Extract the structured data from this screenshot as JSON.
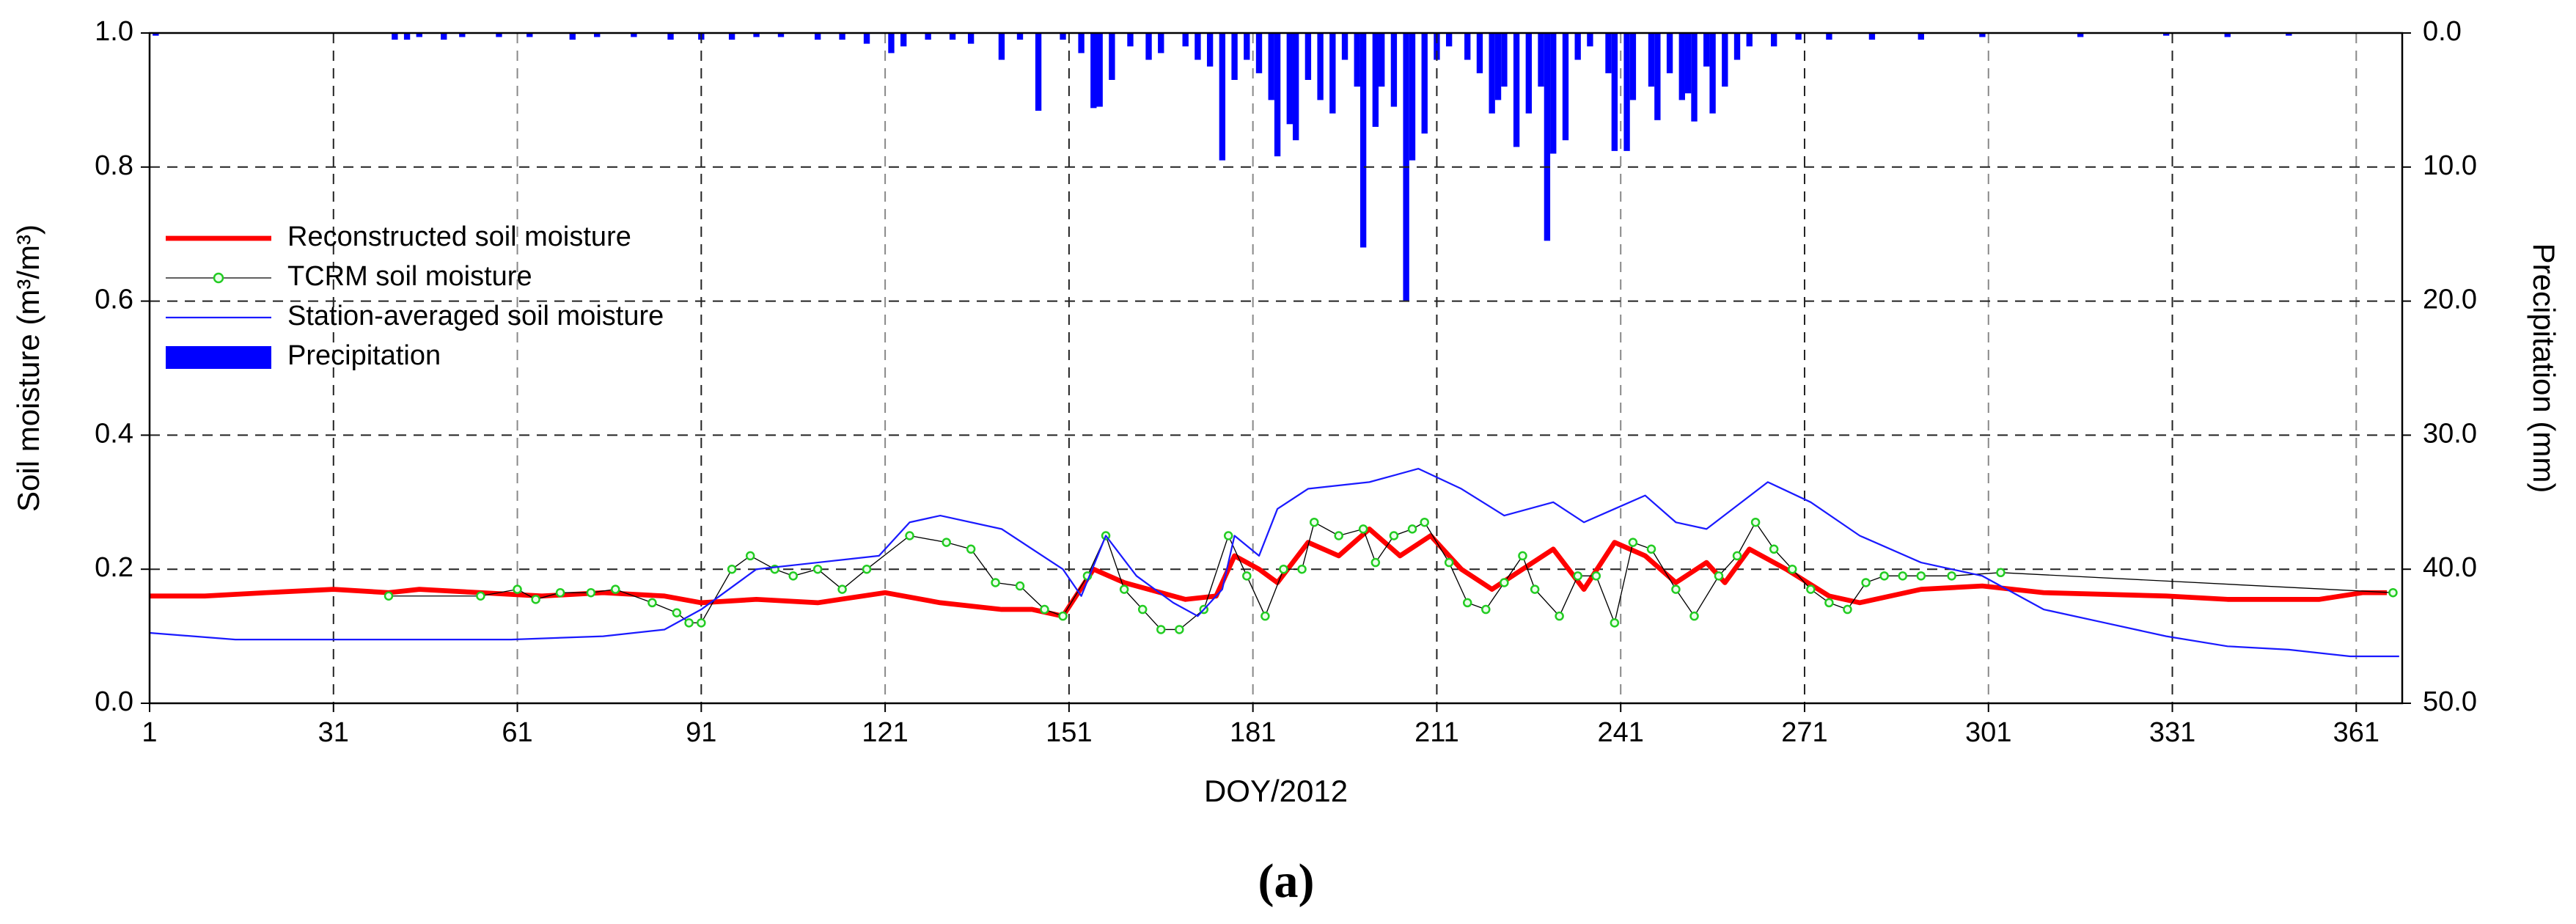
{
  "chart_data": {
    "type": "line",
    "x_label": "DOY/2012",
    "y_label": "Soil moisture (m³/m³)",
    "y2_label": "Precipitation (mm)",
    "caption": "(a)",
    "xlim": [
      1,
      368.5
    ],
    "xticks": [
      1,
      31,
      61,
      91,
      121,
      151,
      181,
      211,
      241,
      271,
      301,
      331,
      361
    ],
    "ylim": [
      0,
      1
    ],
    "yticks": [
      {
        "value": 0,
        "label": "0.0"
      },
      {
        "value": 0.2,
        "label": "0.2"
      },
      {
        "value": 0.4,
        "label": "0.4"
      },
      {
        "value": 0.6,
        "label": "0.6"
      },
      {
        "value": 0.8,
        "label": "0.8"
      },
      {
        "value": 1,
        "label": "1.0"
      }
    ],
    "y2lim": [
      0,
      50
    ],
    "y2_reversed": true,
    "y2ticks": [
      {
        "value": 0,
        "label": "0.0"
      },
      {
        "value": 10,
        "label": "10.0"
      },
      {
        "value": 20,
        "label": "20.0"
      },
      {
        "value": 30,
        "label": "30.0"
      },
      {
        "value": 40,
        "label": "40.0"
      },
      {
        "value": 50,
        "label": "50.0"
      }
    ],
    "grid": true,
    "legend": "upper left",
    "series": [
      {
        "name": "Reconstructed soil moisture",
        "color": "#ff0000",
        "kind": "line",
        "width": 3,
        "x": [
          1,
          10,
          20,
          31,
          40,
          45,
          55,
          65,
          75,
          85,
          91,
          100,
          110,
          121,
          130,
          140,
          145,
          150,
          155,
          160,
          170,
          175,
          178,
          182,
          185,
          190,
          195,
          200,
          205,
          210,
          215,
          220,
          225,
          230,
          235,
          240,
          245,
          250,
          255,
          258,
          262,
          268,
          275,
          280,
          290,
          300,
          310,
          330,
          340,
          355,
          362,
          366
        ],
        "values": [
          0.16,
          0.16,
          0.165,
          0.17,
          0.165,
          0.17,
          0.165,
          0.16,
          0.165,
          0.16,
          0.15,
          0.155,
          0.15,
          0.165,
          0.15,
          0.14,
          0.14,
          0.13,
          0.2,
          0.18,
          0.155,
          0.16,
          0.22,
          0.2,
          0.18,
          0.24,
          0.22,
          0.26,
          0.22,
          0.25,
          0.2,
          0.17,
          0.2,
          0.23,
          0.17,
          0.24,
          0.22,
          0.18,
          0.21,
          0.18,
          0.23,
          0.2,
          0.16,
          0.15,
          0.17,
          0.175,
          0.165,
          0.16,
          0.155,
          0.155,
          0.165,
          0.165
        ]
      },
      {
        "name": "TCRM soil moisture",
        "color": "#000000",
        "marker_color": "#22cc22",
        "kind": "line",
        "width": 0.6,
        "marker": "circle",
        "x": [
          40,
          55,
          61,
          64,
          68,
          73,
          77,
          83,
          87,
          89,
          91,
          96,
          99,
          103,
          106,
          110,
          114,
          118,
          125,
          131,
          135,
          139,
          143,
          147,
          150,
          154,
          157,
          160,
          163,
          166,
          169,
          173,
          177,
          180,
          183,
          186,
          189,
          191,
          195,
          199,
          201,
          204,
          207,
          209,
          213,
          216,
          219,
          222,
          225,
          227,
          231,
          234,
          237,
          240,
          243,
          246,
          250,
          253,
          257,
          260,
          263,
          266,
          269,
          272,
          275,
          278,
          281,
          284,
          287,
          290,
          295,
          303,
          367
        ],
        "values": [
          0.16,
          0.16,
          0.17,
          0.155,
          0.165,
          0.165,
          0.17,
          0.15,
          0.135,
          0.12,
          0.12,
          0.2,
          0.22,
          0.2,
          0.19,
          0.2,
          0.17,
          0.2,
          0.25,
          0.24,
          0.23,
          0.18,
          0.175,
          0.14,
          0.13,
          0.19,
          0.25,
          0.17,
          0.14,
          0.11,
          0.11,
          0.14,
          0.25,
          0.19,
          0.13,
          0.2,
          0.2,
          0.27,
          0.25,
          0.26,
          0.21,
          0.25,
          0.26,
          0.27,
          0.21,
          0.15,
          0.14,
          0.18,
          0.22,
          0.17,
          0.13,
          0.19,
          0.19,
          0.12,
          0.24,
          0.23,
          0.17,
          0.13,
          0.19,
          0.22,
          0.27,
          0.23,
          0.2,
          0.17,
          0.15,
          0.14,
          0.18,
          0.19,
          0.19,
          0.19,
          0.19,
          0.195,
          0.165
        ]
      },
      {
        "name": "Station-averaged soil moisture",
        "color": "#1a1aff",
        "kind": "line",
        "width": 1,
        "x": [
          1,
          15,
          30,
          45,
          60,
          75,
          85,
          91,
          100,
          110,
          120,
          125,
          130,
          140,
          150,
          153,
          157,
          162,
          168,
          172,
          176,
          178,
          182,
          185,
          190,
          200,
          208,
          215,
          222,
          230,
          235,
          240,
          245,
          250,
          255,
          265,
          272,
          280,
          290,
          300,
          310,
          320,
          330,
          340,
          350,
          360,
          368
        ],
        "values": [
          0.105,
          0.095,
          0.095,
          0.095,
          0.095,
          0.1,
          0.11,
          0.14,
          0.2,
          0.21,
          0.22,
          0.27,
          0.28,
          0.26,
          0.2,
          0.16,
          0.25,
          0.19,
          0.15,
          0.13,
          0.17,
          0.25,
          0.22,
          0.29,
          0.32,
          0.33,
          0.35,
          0.32,
          0.28,
          0.3,
          0.27,
          0.29,
          0.31,
          0.27,
          0.26,
          0.33,
          0.3,
          0.25,
          0.21,
          0.19,
          0.14,
          0.12,
          0.1,
          0.085,
          0.08,
          0.07,
          0.07
        ]
      },
      {
        "name": "Precipitation",
        "color": "#0000ff",
        "kind": "bar",
        "axis": "y2",
        "x": [
          2,
          41,
          43,
          45,
          49,
          52,
          58,
          63,
          70,
          74,
          80,
          86,
          91,
          96,
          100,
          104,
          110,
          114,
          118,
          122,
          124,
          128,
          132,
          135,
          140,
          143,
          146,
          150,
          153,
          155,
          156,
          158,
          161,
          164,
          166,
          170,
          172,
          174,
          176,
          178,
          180,
          182,
          184,
          185,
          187,
          188,
          190,
          192,
          194,
          196,
          198,
          199,
          201,
          202,
          204,
          206,
          207,
          209,
          211,
          213,
          216,
          218,
          220,
          221,
          222,
          224,
          226,
          228,
          229,
          230,
          232,
          234,
          236,
          239,
          240,
          242,
          243,
          246,
          247,
          249,
          251,
          252,
          253,
          255,
          256,
          258,
          260,
          262,
          266,
          270,
          275,
          282,
          290,
          300,
          316,
          330,
          340,
          350
        ],
        "values": [
          0.2,
          0.5,
          0.5,
          0.3,
          0.5,
          0.3,
          0.3,
          0.3,
          0.5,
          0.3,
          0.3,
          0.5,
          0.5,
          0.5,
          0.3,
          0.3,
          0.5,
          0.5,
          0.8,
          1.5,
          1,
          0.5,
          0.5,
          0.8,
          2,
          0.5,
          5.8,
          0.5,
          1.5,
          5.6,
          5.5,
          3.5,
          1,
          2,
          1.5,
          1,
          2,
          2.5,
          9.5,
          3.5,
          2,
          3,
          5,
          9.2,
          6.8,
          8,
          3.5,
          5,
          6,
          2,
          4,
          16,
          7,
          4,
          5.5,
          20,
          9.5,
          7.5,
          2,
          1,
          2,
          3,
          6,
          5,
          4,
          8.5,
          6,
          4,
          15.5,
          9,
          8,
          2,
          1,
          3,
          8.8,
          8.8,
          5,
          4,
          6.5,
          3,
          5,
          4.5,
          6.6,
          2.5,
          6,
          4,
          2,
          1,
          1,
          0.5,
          0.5,
          0.5,
          0.5,
          0.3,
          0.3,
          0.2,
          0.3,
          0.2
        ]
      }
    ]
  }
}
